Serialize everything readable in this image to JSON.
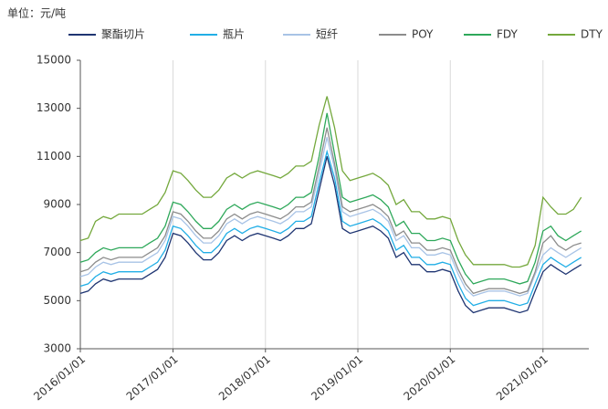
{
  "chart_data": {
    "type": "line",
    "ylabel": "单位：元/吨",
    "x": [
      "2016/01/01",
      "2016/02/01",
      "2016/03/01",
      "2016/04/01",
      "2016/05/01",
      "2016/06/01",
      "2016/07/01",
      "2016/08/01",
      "2016/09/01",
      "2016/10/01",
      "2016/11/01",
      "2016/12/01",
      "2017/01/01",
      "2017/02/01",
      "2017/03/01",
      "2017/04/01",
      "2017/05/01",
      "2017/06/01",
      "2017/07/01",
      "2017/08/01",
      "2017/09/01",
      "2017/10/01",
      "2017/11/01",
      "2017/12/01",
      "2018/01/01",
      "2018/02/01",
      "2018/03/01",
      "2018/04/01",
      "2018/05/01",
      "2018/06/01",
      "2018/07/01",
      "2018/08/01",
      "2018/09/01",
      "2018/10/01",
      "2018/11/01",
      "2018/12/01",
      "2019/01/01",
      "2019/02/01",
      "2019/03/01",
      "2019/04/01",
      "2019/05/01",
      "2019/06/01",
      "2019/07/01",
      "2019/08/01",
      "2019/09/01",
      "2019/10/01",
      "2019/11/01",
      "2019/12/01",
      "2020/01/01",
      "2020/02/01",
      "2020/03/01",
      "2020/04/01",
      "2020/05/01",
      "2020/06/01",
      "2020/07/01",
      "2020/08/01",
      "2020/09/01",
      "2020/10/01",
      "2020/11/01",
      "2020/12/01",
      "2021/01/01",
      "2021/02/01",
      "2021/03/01",
      "2021/04/01",
      "2021/05/01",
      "2021/06/01"
    ],
    "xlim": [
      "2016/01/01",
      "2021/07/01"
    ],
    "xticks": [
      "2016/01/01",
      "2017/01/01",
      "2018/01/01",
      "2019/01/01",
      "2020/01/01",
      "2021/01/01"
    ],
    "ylim": [
      3000,
      15000
    ],
    "yticks": [
      3000,
      5000,
      7000,
      9000,
      11000,
      13000,
      15000
    ],
    "grid": true,
    "series": [
      {
        "name": "聚酯切片",
        "color": "#1f3572",
        "values": [
          5300,
          5400,
          5700,
          5900,
          5800,
          5900,
          5900,
          5900,
          5900,
          6100,
          6300,
          6800,
          7800,
          7700,
          7400,
          7000,
          6700,
          6700,
          7000,
          7500,
          7700,
          7500,
          7700,
          7800,
          7700,
          7600,
          7500,
          7700,
          8000,
          8000,
          8200,
          9600,
          11000,
          9800,
          8000,
          7800,
          7900,
          8000,
          8100,
          7900,
          7600,
          6800,
          7000,
          6500,
          6500,
          6200,
          6200,
          6300,
          6200,
          5400,
          4800,
          4500,
          4600,
          4700,
          4700,
          4700,
          4600,
          4500,
          4600,
          5400,
          6200,
          6500,
          6300,
          6100,
          6300,
          6500
        ]
      },
      {
        "name": "瓶片",
        "color": "#21aee6",
        "values": [
          5600,
          5700,
          6000,
          6200,
          6100,
          6200,
          6200,
          6200,
          6200,
          6400,
          6600,
          7100,
          8100,
          8000,
          7700,
          7300,
          7000,
          7000,
          7300,
          7800,
          8000,
          7800,
          8000,
          8100,
          8000,
          7900,
          7800,
          8000,
          8300,
          8300,
          8500,
          9900,
          11200,
          10100,
          8300,
          8100,
          8200,
          8300,
          8400,
          8200,
          7900,
          7100,
          7300,
          6800,
          6800,
          6500,
          6500,
          6600,
          6500,
          5700,
          5100,
          4800,
          4900,
          5000,
          5000,
          5000,
          4900,
          4800,
          4900,
          5700,
          6500,
          6800,
          6600,
          6400,
          6600,
          6800
        ]
      },
      {
        "name": "短纤",
        "color": "#a8c3e6",
        "values": [
          6000,
          6100,
          6400,
          6600,
          6500,
          6600,
          6600,
          6600,
          6600,
          6800,
          7000,
          7500,
          8500,
          8400,
          8100,
          7700,
          7400,
          7400,
          7700,
          8200,
          8400,
          8200,
          8400,
          8500,
          8400,
          8300,
          8200,
          8400,
          8700,
          8700,
          8900,
          10300,
          11800,
          10500,
          8700,
          8500,
          8600,
          8700,
          8800,
          8600,
          8300,
          7500,
          7700,
          7200,
          7200,
          6900,
          6900,
          7000,
          6900,
          6100,
          5500,
          5200,
          5300,
          5400,
          5400,
          5400,
          5300,
          5200,
          5300,
          6100,
          6900,
          7200,
          7000,
          6800,
          7000,
          7200
        ]
      },
      {
        "name": "POY",
        "color": "#8c8c8c",
        "values": [
          6200,
          6300,
          6600,
          6800,
          6700,
          6800,
          6800,
          6800,
          6800,
          7000,
          7200,
          7700,
          8700,
          8600,
          8300,
          7900,
          7600,
          7600,
          7900,
          8400,
          8600,
          8400,
          8600,
          8700,
          8600,
          8500,
          8400,
          8600,
          8900,
          8900,
          9100,
          10600,
          12200,
          10700,
          8900,
          8700,
          8800,
          8900,
          9000,
          8800,
          8500,
          7700,
          7900,
          7400,
          7400,
          7100,
          7100,
          7200,
          7100,
          6300,
          5700,
          5300,
          5400,
          5500,
          5500,
          5500,
          5400,
          5300,
          5400,
          6200,
          7400,
          7700,
          7300,
          7100,
          7300,
          7400
        ]
      },
      {
        "name": "FDY",
        "color": "#2ea85a",
        "values": [
          6600,
          6700,
          7000,
          7200,
          7100,
          7200,
          7200,
          7200,
          7200,
          7400,
          7600,
          8100,
          9100,
          9000,
          8700,
          8300,
          8000,
          8000,
          8300,
          8800,
          9000,
          8800,
          9000,
          9100,
          9000,
          8900,
          8800,
          9000,
          9300,
          9300,
          9500,
          11000,
          12800,
          11100,
          9300,
          9100,
          9200,
          9300,
          9400,
          9200,
          8900,
          8100,
          8300,
          7800,
          7800,
          7500,
          7500,
          7600,
          7500,
          6700,
          6100,
          5700,
          5800,
          5900,
          5900,
          5900,
          5800,
          5700,
          5800,
          6600,
          7900,
          8100,
          7700,
          7500,
          7700,
          7900
        ]
      },
      {
        "name": "DTY",
        "color": "#74a83c",
        "values": [
          7500,
          7600,
          8300,
          8500,
          8400,
          8600,
          8600,
          8600,
          8600,
          8800,
          9000,
          9500,
          10400,
          10300,
          10000,
          9600,
          9300,
          9300,
          9600,
          10100,
          10300,
          10100,
          10300,
          10400,
          10300,
          10200,
          10100,
          10300,
          10600,
          10600,
          10800,
          12300,
          13500,
          12200,
          10400,
          10000,
          10100,
          10200,
          10300,
          10100,
          9800,
          9000,
          9200,
          8700,
          8700,
          8400,
          8400,
          8500,
          8400,
          7500,
          6900,
          6500,
          6500,
          6500,
          6500,
          6500,
          6400,
          6400,
          6500,
          7300,
          9300,
          8900,
          8600,
          8600,
          8800,
          9300
        ]
      }
    ]
  }
}
